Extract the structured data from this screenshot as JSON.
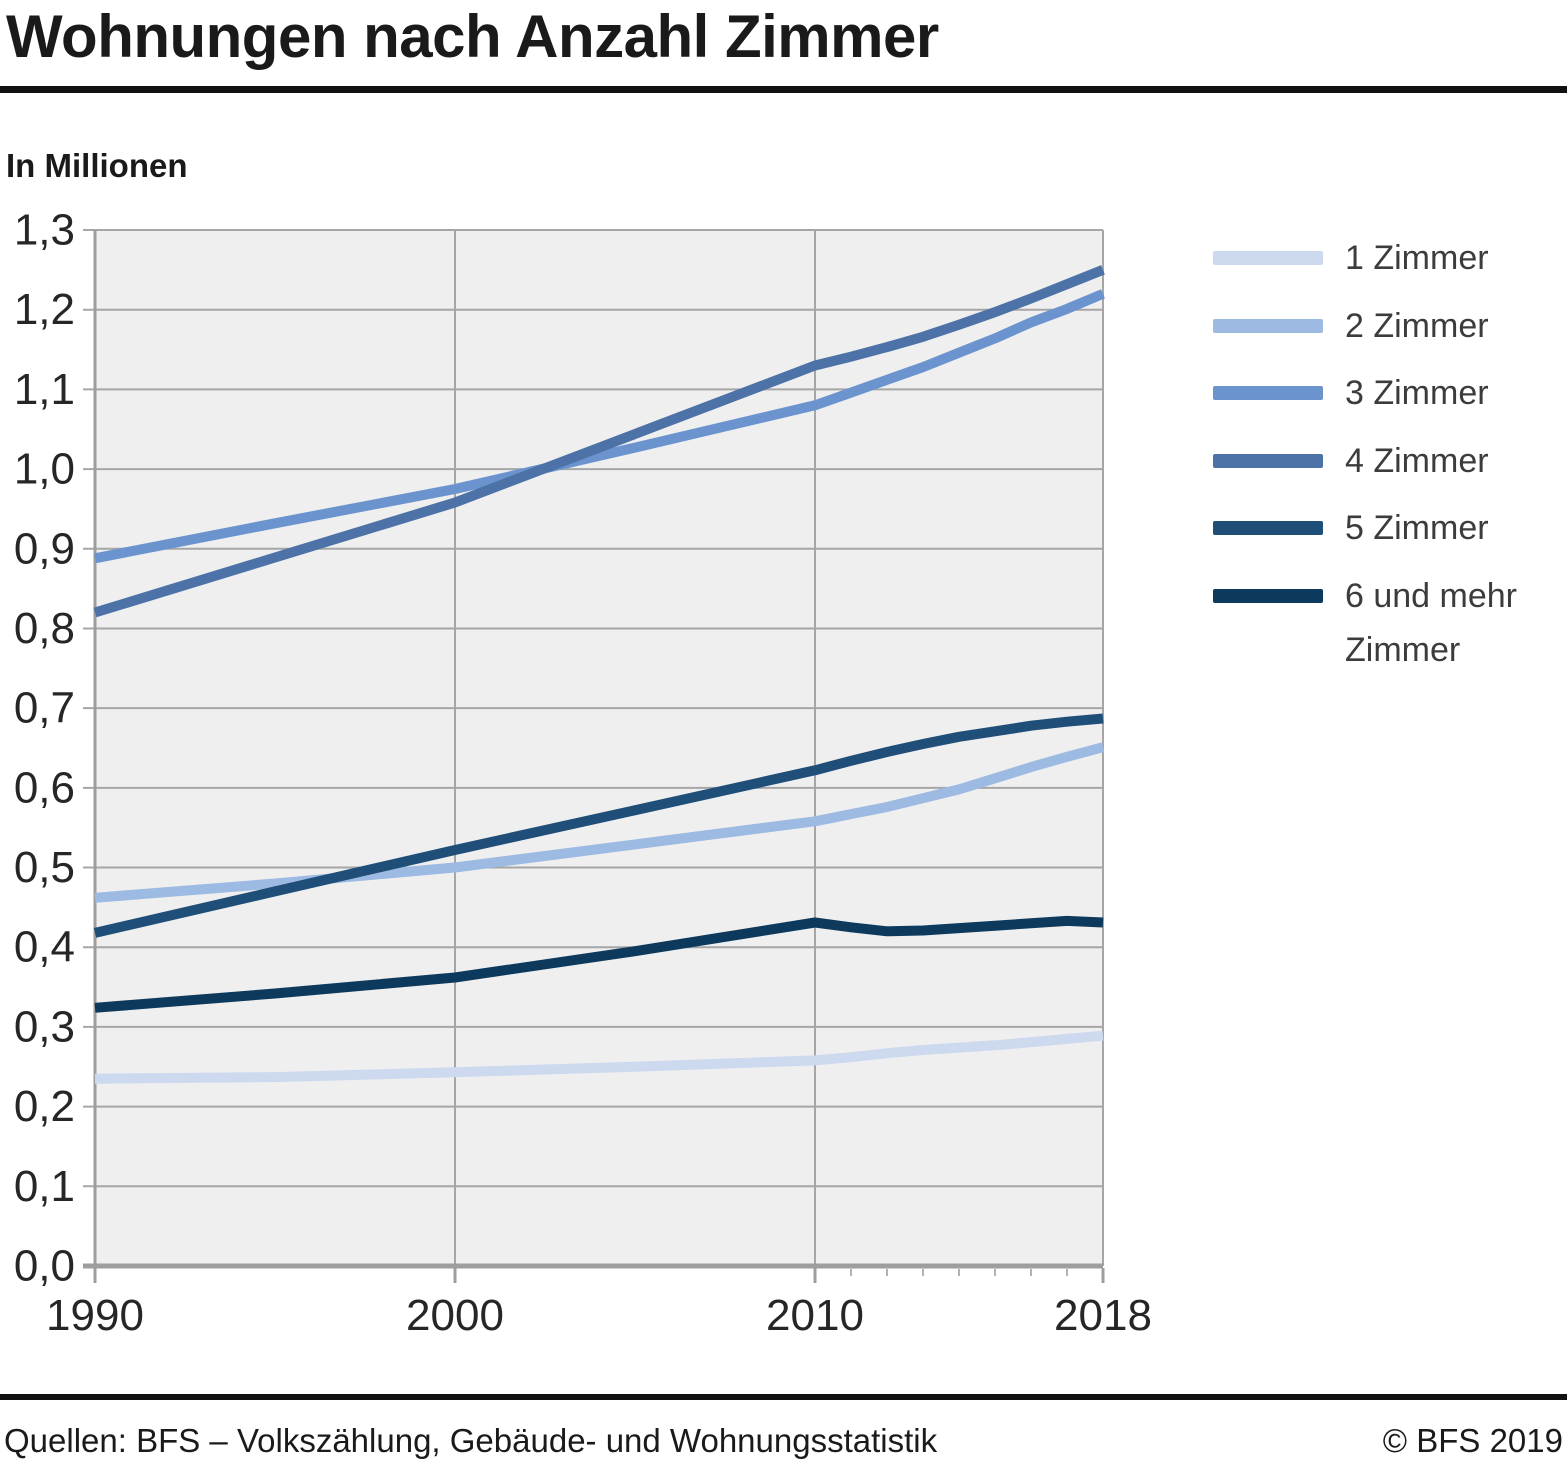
{
  "page": {
    "title": "Wohnungen nach Anzahl Zimmer",
    "footer": {
      "source": "Quellen: BFS – Volkszählung, Gebäude- und Wohnungsstatistik",
      "copyright": "© BFS 2019"
    }
  },
  "chart_data": {
    "type": "line",
    "title": "Wohnungen nach Anzahl Zimmer",
    "unit_label": "In Millionen",
    "ylabel": "",
    "xlabel": "",
    "x": [
      1990,
      1995,
      2000,
      2005,
      2010,
      2011,
      2012,
      2013,
      2014,
      2015,
      2016,
      2017,
      2018
    ],
    "xlim": [
      1990,
      2018
    ],
    "ylim": [
      0,
      1.3
    ],
    "y_tick_step": 0.1,
    "decimal_separator": ",",
    "x_major_ticks": [
      1990,
      2000,
      2010,
      2018
    ],
    "x_axis_labels": [
      "1990",
      "2000",
      "2010",
      "2018"
    ],
    "x_minor_ticks": [
      2011,
      2012,
      2013,
      2014,
      2015,
      2016,
      2017
    ],
    "grid": true,
    "legend_position": "right",
    "plot_background": "#efefef",
    "grid_color": "#a6a6a6",
    "axis_color": "#9e9e9e",
    "minor_tick_color": "#b3b3b3",
    "tick_label_color": "#262626",
    "series": [
      {
        "name": "1 Zimmer",
        "color": "#ccd9ef",
        "values": [
          0.235,
          0.237,
          0.243,
          0.25,
          0.258,
          0.262,
          0.267,
          0.271,
          0.274,
          0.277,
          0.281,
          0.285,
          0.289
        ]
      },
      {
        "name": "2 Zimmer",
        "color": "#9dbae2",
        "values": [
          0.462,
          0.48,
          0.5,
          0.529,
          0.558,
          0.567,
          0.576,
          0.587,
          0.598,
          0.612,
          0.626,
          0.639,
          0.651
        ]
      },
      {
        "name": "3 Zimmer",
        "color": "#6b94cf",
        "values": [
          0.888,
          0.932,
          0.975,
          1.027,
          1.08,
          1.096,
          1.112,
          1.128,
          1.146,
          1.164,
          1.184,
          1.201,
          1.22
        ]
      },
      {
        "name": "4 Zimmer",
        "color": "#4d72a8",
        "values": [
          0.82,
          0.889,
          0.958,
          1.044,
          1.13,
          1.141,
          1.153,
          1.166,
          1.181,
          1.197,
          1.214,
          1.232,
          1.25
        ]
      },
      {
        "name": "5 Zimmer",
        "color": "#1f4e79",
        "values": [
          0.418,
          0.47,
          0.522,
          0.572,
          0.622,
          0.634,
          0.645,
          0.655,
          0.664,
          0.671,
          0.678,
          0.683,
          0.687
        ]
      },
      {
        "name": "6 und mehr Zimmer",
        "color": "#0d3a5c",
        "values": [
          0.324,
          0.342,
          0.362,
          0.395,
          0.431,
          0.425,
          0.42,
          0.421,
          0.424,
          0.427,
          0.43,
          0.433,
          0.431
        ]
      }
    ]
  }
}
